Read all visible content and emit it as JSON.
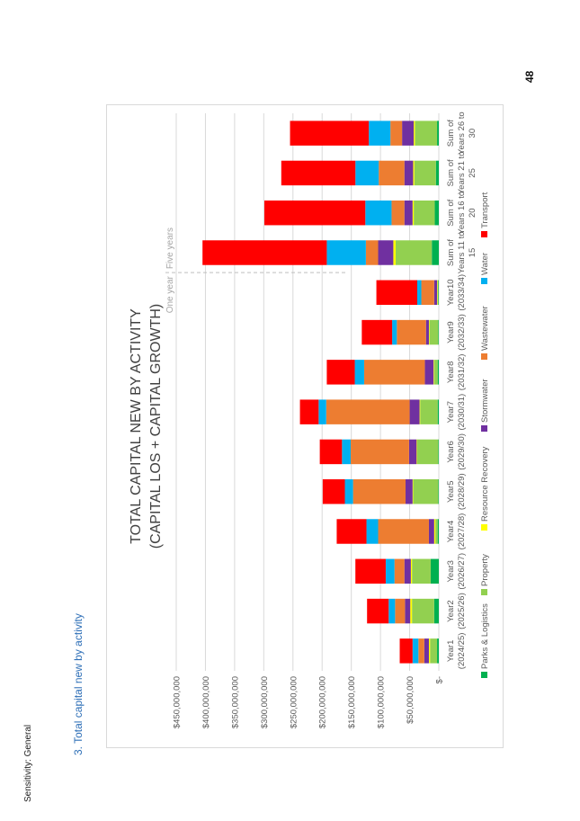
{
  "page": {
    "sensitivity": "Sensitivity: General",
    "section_heading": "3.   Total capital new by activity",
    "page_number": "48"
  },
  "chart_data": {
    "type": "bar",
    "stacked": true,
    "orientation": "rotated-90",
    "title_line1": "TOTAL CAPITAL NEW BY ACTIVITY",
    "title_line2": "(CAPITAL LOS + CAPITAL GROWTH)",
    "annotation_one_year": "One year",
    "annotation_five_years": "Five years",
    "legend_position": "bottom",
    "grid": true,
    "ylim": [
      0,
      450000000
    ],
    "y_ticks": [
      "$-",
      "$50,000,000",
      "$100,000,000",
      "$150,000,000",
      "$200,000,000",
      "$250,000,000",
      "$300,000,000",
      "$350,000,000",
      "$400,000,000",
      "$450,000,000"
    ],
    "categories": [
      [
        "Year1",
        "(2024/25)"
      ],
      [
        "Year2",
        "(2025/26)"
      ],
      [
        "Year3",
        "(2026/27)"
      ],
      [
        "Year4",
        "(2027/28)"
      ],
      [
        "Year5",
        "(2028/29)"
      ],
      [
        "Year6",
        "(2029/30)"
      ],
      [
        "Year7",
        "(2030/31)"
      ],
      [
        "Year8",
        "(2031/32)"
      ],
      [
        "Year9",
        "(2032/33)"
      ],
      [
        "Year10",
        "(2033/34)"
      ],
      [
        "Sum of",
        "Years 11 to",
        "15"
      ],
      [
        "Sum of",
        "Years 16 to",
        "20"
      ],
      [
        "Sum of",
        "Years 21 to",
        "25"
      ],
      [
        "Sum of",
        "Years 26 to",
        "30"
      ]
    ],
    "series": [
      {
        "name": "Parks & Logistics",
        "color": "#00b050",
        "values": [
          3000000,
          8000000,
          14000000,
          2000000,
          1000000,
          1000000,
          2000000,
          2000000,
          1000000,
          1000000,
          12000000,
          7000000,
          5000000,
          3000000
        ]
      },
      {
        "name": "Property",
        "color": "#92d050",
        "values": [
          12000000,
          38000000,
          32000000,
          4000000,
          43000000,
          36000000,
          30000000,
          6000000,
          15000000,
          1000000,
          62000000,
          36000000,
          37000000,
          38000000
        ]
      },
      {
        "name": "Resource Recovery",
        "color": "#ffff00",
        "values": [
          2000000,
          3000000,
          2000000,
          2000000,
          1000000,
          1000000,
          1000000,
          1000000,
          1000000,
          1000000,
          4000000,
          2000000,
          2000000,
          2000000
        ]
      },
      {
        "name": "Stormwater",
        "color": "#7030a0",
        "values": [
          8000000,
          9000000,
          11000000,
          9000000,
          12000000,
          13000000,
          17000000,
          15000000,
          5000000,
          5000000,
          26000000,
          14000000,
          15000000,
          20000000
        ]
      },
      {
        "name": "Wastewater",
        "color": "#ed7d31",
        "values": [
          10000000,
          17000000,
          17000000,
          87000000,
          90000000,
          100000000,
          143000000,
          104000000,
          50000000,
          22000000,
          21000000,
          22000000,
          44000000,
          20000000
        ]
      },
      {
        "name": "Water",
        "color": "#00b0f0",
        "values": [
          10000000,
          11000000,
          15000000,
          20000000,
          14000000,
          15000000,
          13000000,
          16000000,
          8000000,
          7000000,
          67000000,
          45000000,
          40000000,
          37000000
        ]
      },
      {
        "name": "Transport",
        "color": "#ff0000",
        "values": [
          22000000,
          37000000,
          52000000,
          51000000,
          38000000,
          38000000,
          32000000,
          48000000,
          52000000,
          70000000,
          213000000,
          173000000,
          127000000,
          135000000
        ]
      }
    ]
  }
}
